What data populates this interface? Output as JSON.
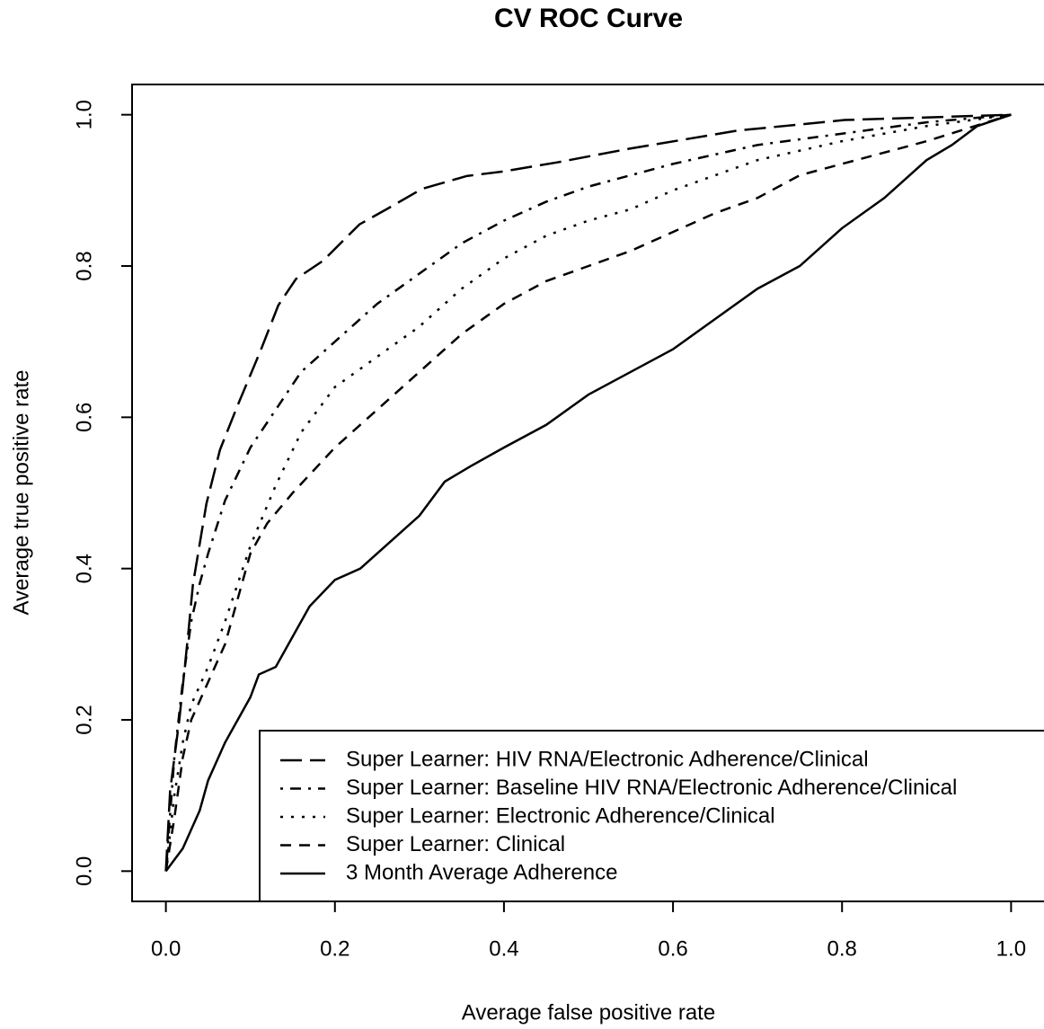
{
  "chart_data": {
    "type": "line",
    "title": "CV ROC Curve",
    "x_label": "Average false positive rate",
    "y_label": "Average true positive rate",
    "xlim": [
      -0.04,
      1.04
    ],
    "ylim": [
      -0.04,
      1.04
    ],
    "xticks": [
      {
        "value": 0,
        "label": "0.0"
      },
      0.2,
      0.4,
      0.6,
      0.8,
      {
        "value": 1,
        "label": "1.0"
      }
    ],
    "yticks": [
      {
        "value": 0,
        "label": "0.0"
      },
      0.2,
      0.4,
      0.6,
      0.8,
      {
        "value": 1,
        "label": "1.0"
      }
    ],
    "legend": "bottomright",
    "series": [
      {
        "name": "Super Learner: HIV RNA/Electronic Adherence/Clinical",
        "color": "#000000",
        "linestyle": "longdash",
        "x": [
          0,
          0.005,
          0.016,
          0.027,
          0.032,
          0.048,
          0.064,
          0.085,
          0.112,
          0.133,
          0.154,
          0.186,
          0.229,
          0.261,
          0.303,
          0.356,
          0.399,
          0.463,
          0.548,
          0.612,
          0.676,
          0.803,
          1
        ],
        "values": [
          0,
          0.106,
          0.201,
          0.32,
          0.379,
          0.486,
          0.557,
          0.616,
          0.688,
          0.748,
          0.783,
          0.807,
          0.855,
          0.875,
          0.902,
          0.919,
          0.925,
          0.937,
          0.955,
          0.967,
          0.979,
          0.993,
          1
        ]
      },
      {
        "name": "Super Learner: Baseline HIV RNA/Electronic Adherence/Clinical",
        "color": "#000000",
        "linestyle": "dotdash",
        "x": [
          0,
          0.01,
          0.02,
          0.03,
          0.04,
          0.05,
          0.07,
          0.1,
          0.13,
          0.16,
          0.2,
          0.25,
          0.3,
          0.35,
          0.4,
          0.45,
          0.5,
          0.55,
          0.6,
          0.7,
          0.8,
          0.9,
          1
        ],
        "values": [
          0,
          0.15,
          0.25,
          0.33,
          0.38,
          0.42,
          0.49,
          0.56,
          0.61,
          0.66,
          0.7,
          0.75,
          0.79,
          0.83,
          0.86,
          0.885,
          0.905,
          0.92,
          0.935,
          0.96,
          0.975,
          0.99,
          1
        ]
      },
      {
        "name": "Super Learner: Electronic Adherence/Clinical",
        "color": "#000000",
        "linestyle": "dotted",
        "x": [
          0,
          0.01,
          0.02,
          0.03,
          0.05,
          0.07,
          0.1,
          0.13,
          0.16,
          0.2,
          0.25,
          0.3,
          0.35,
          0.4,
          0.45,
          0.5,
          0.55,
          0.6,
          0.7,
          0.8,
          0.9,
          1
        ],
        "values": [
          0,
          0.1,
          0.17,
          0.22,
          0.27,
          0.33,
          0.43,
          0.51,
          0.58,
          0.64,
          0.68,
          0.72,
          0.77,
          0.81,
          0.84,
          0.86,
          0.875,
          0.9,
          0.94,
          0.965,
          0.985,
          1
        ]
      },
      {
        "name": "Super Learner: Clinical",
        "color": "#000000",
        "linestyle": "dashed",
        "x": [
          0,
          0.01,
          0.02,
          0.03,
          0.05,
          0.07,
          0.1,
          0.12,
          0.15,
          0.2,
          0.25,
          0.3,
          0.35,
          0.4,
          0.45,
          0.5,
          0.55,
          0.6,
          0.65,
          0.7,
          0.75,
          0.8,
          0.9,
          1
        ],
        "values": [
          0,
          0.07,
          0.15,
          0.2,
          0.25,
          0.3,
          0.42,
          0.46,
          0.5,
          0.56,
          0.61,
          0.66,
          0.71,
          0.75,
          0.78,
          0.8,
          0.82,
          0.845,
          0.87,
          0.89,
          0.92,
          0.935,
          0.965,
          1
        ]
      },
      {
        "name": "3 Month Average Adherence",
        "color": "#000000",
        "linestyle": "solid",
        "x": [
          0,
          0.02,
          0.04,
          0.05,
          0.07,
          0.09,
          0.1,
          0.11,
          0.13,
          0.15,
          0.17,
          0.2,
          0.23,
          0.26,
          0.3,
          0.33,
          0.36,
          0.4,
          0.45,
          0.5,
          0.55,
          0.6,
          0.65,
          0.7,
          0.75,
          0.8,
          0.85,
          0.9,
          0.93,
          0.96,
          1
        ],
        "values": [
          0,
          0.03,
          0.08,
          0.12,
          0.17,
          0.21,
          0.23,
          0.26,
          0.27,
          0.31,
          0.35,
          0.385,
          0.4,
          0.43,
          0.47,
          0.515,
          0.535,
          0.56,
          0.59,
          0.63,
          0.66,
          0.69,
          0.73,
          0.77,
          0.8,
          0.85,
          0.89,
          0.94,
          0.96,
          0.985,
          1
        ]
      }
    ]
  }
}
